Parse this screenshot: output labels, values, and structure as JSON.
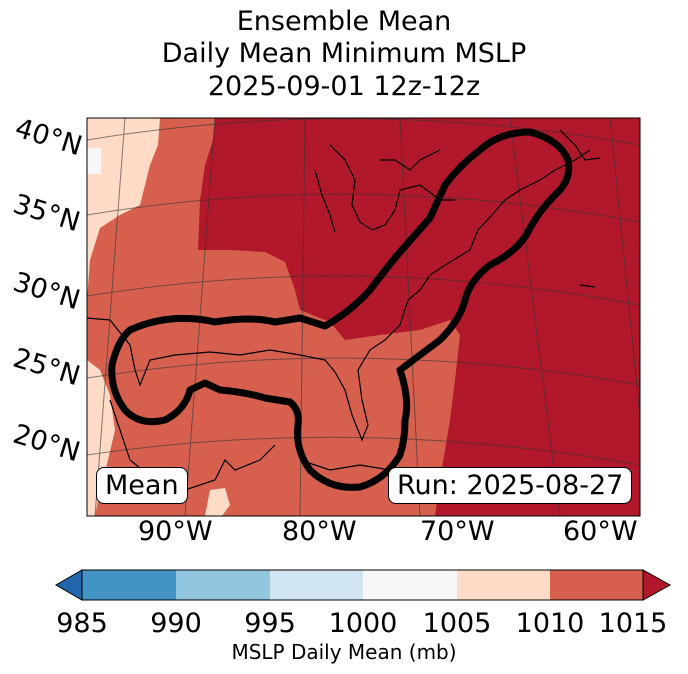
{
  "title": {
    "line1": "Ensemble Mean",
    "line2": "Daily Mean Minimum MSLP",
    "line3": "2025-09-01 12z-12z"
  },
  "map": {
    "lat_labels": [
      "40°N",
      "35°N",
      "30°N",
      "25°N",
      "20°N"
    ],
    "lon_labels": [
      "90°W",
      "80°W",
      "70°W",
      "60°W"
    ],
    "mean_label": "Mean",
    "run_label": "Run: 2025-08-27",
    "contour_description": "thick black probability/mean contour enclosing Gulf of Mexico and US East Coast"
  },
  "colorbar": {
    "ticks": [
      "985",
      "990",
      "995",
      "1000",
      "1005",
      "1010",
      "1015"
    ],
    "label": "MSLP Daily Mean (mb)",
    "colors": [
      "#2166ac",
      "#4393c3",
      "#92c5de",
      "#d1e5f0",
      "#f7f7f7",
      "#fddbc7",
      "#d6604d",
      "#b2182b"
    ]
  },
  "chart_data": {
    "type": "heatmap",
    "title": "Ensemble Mean Daily Mean Minimum MSLP 2025-09-01 12z-12z",
    "levels": [
      985,
      990,
      995,
      1000,
      1005,
      1010,
      1015
    ],
    "colorbar_label": "MSLP Daily Mean (mb)",
    "extend": "both",
    "regions": [
      {
        "name": "northeast and Atlantic",
        "range": "above 1015"
      },
      {
        "name": "Gulf of Mexico and southeast US",
        "range": "1010-1015"
      },
      {
        "name": "western edge / Mexico",
        "range": "1005-1010"
      }
    ]
  }
}
